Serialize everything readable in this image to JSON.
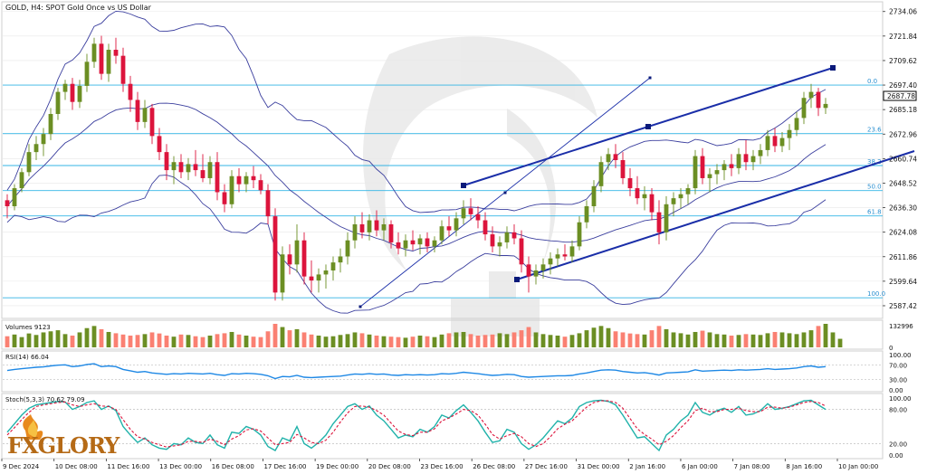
{
  "window": {
    "title": "GOLD, H4:  SPOT Gold Once vs US Dollar"
  },
  "price_axis": {
    "ticks": [
      "2734.06",
      "2721.84",
      "2709.62",
      "2697.40",
      "2685.18",
      "2672.96",
      "2660.74",
      "2648.52",
      "2636.30",
      "2624.08",
      "2611.86",
      "2599.64",
      "2587.42"
    ],
    "current_price": "2687.78",
    "current_price_color": "#000000"
  },
  "time_axis": {
    "labels": [
      "9 Dec 2024",
      "10 Dec 08:00",
      "11 Dec 16:00",
      "13 Dec 00:00",
      "16 Dec 08:00",
      "17 Dec 16:00",
      "19 Dec 00:00",
      "20 Dec 08:00",
      "23 Dec 16:00",
      "26 Dec 08:00",
      "27 Dec 16:00",
      "31 Dec 00:00",
      "2 Jan 16:00",
      "6 Jan 00:00",
      "7 Jan 08:00",
      "8 Jan 16:00",
      "10 Jan 00:00"
    ]
  },
  "fibonacci": {
    "levels": [
      {
        "label": "0.0",
        "price": 2697.4
      },
      {
        "label": "23.6",
        "price": 2673.2
      },
      {
        "label": "38.2",
        "price": 2657.3
      },
      {
        "label": "50.0",
        "price": 2644.8
      },
      {
        "label": "61.8",
        "price": 2632.2
      },
      {
        "label": "100.0",
        "price": 2591.4
      }
    ],
    "color": "#33b5e5"
  },
  "panels": {
    "volume": {
      "title": "Volumes 9123",
      "ticks": [
        "132996",
        "0"
      ],
      "up_color": "#6b8e23",
      "down_color": "#fa8072"
    },
    "rsi": {
      "title": "RSI(14) 66.04",
      "ticks": [
        "100.00",
        "70.00",
        "30.00",
        "0.00"
      ],
      "color": "#1e88e5"
    },
    "stoch": {
      "title": "Stoch(5,3,3) 70.62 79.09",
      "ticks": [
        "100.00",
        "80.00",
        "20.00",
        "0.00"
      ],
      "main_color": "#20b2aa",
      "signal_color": "#dc143c"
    }
  },
  "brand": {
    "name": "FxGlory",
    "logo_text": "FXGLORY"
  },
  "colors": {
    "bull_candle": "#6b8e23",
    "bear_candle": "#dc143c",
    "bollinger": "#3b3f9e",
    "channel": "#1a2ea8",
    "grid": "#e8e8e8"
  },
  "chart_data": {
    "type": "candlestick",
    "title": "GOLD, H4:  SPOT Gold Once vs US Dollar",
    "symbol": "GOLD",
    "timeframe": "H4",
    "ylim": [
      2582,
      2738
    ],
    "candles": [
      {
        "o": 2640.0,
        "h": 2643.0,
        "l": 2631.0,
        "c": 2637.0
      },
      {
        "o": 2637.0,
        "h": 2648.0,
        "l": 2635.0,
        "c": 2646.0
      },
      {
        "o": 2646.0,
        "h": 2656.0,
        "l": 2644.0,
        "c": 2654.0
      },
      {
        "o": 2654.0,
        "h": 2668.0,
        "l": 2652.0,
        "c": 2664.0
      },
      {
        "o": 2664.0,
        "h": 2672.0,
        "l": 2660.0,
        "c": 2668.0
      },
      {
        "o": 2668.0,
        "h": 2676.0,
        "l": 2662.0,
        "c": 2673.0
      },
      {
        "o": 2673.0,
        "h": 2686.0,
        "l": 2670.0,
        "c": 2683.0
      },
      {
        "o": 2683.0,
        "h": 2696.0,
        "l": 2680.0,
        "c": 2694.0
      },
      {
        "o": 2694.0,
        "h": 2700.0,
        "l": 2690.0,
        "c": 2698.0
      },
      {
        "o": 2698.0,
        "h": 2701.0,
        "l": 2685.0,
        "c": 2689.0
      },
      {
        "o": 2689.0,
        "h": 2700.0,
        "l": 2686.0,
        "c": 2697.0
      },
      {
        "o": 2697.0,
        "h": 2713.0,
        "l": 2694.0,
        "c": 2709.0
      },
      {
        "o": 2709.0,
        "h": 2721.0,
        "l": 2706.0,
        "c": 2718.0
      },
      {
        "o": 2718.0,
        "h": 2722.0,
        "l": 2700.0,
        "c": 2703.0
      },
      {
        "o": 2703.0,
        "h": 2718.0,
        "l": 2699.0,
        "c": 2715.0
      },
      {
        "o": 2715.0,
        "h": 2721.0,
        "l": 2708.0,
        "c": 2712.0
      },
      {
        "o": 2712.0,
        "h": 2716.0,
        "l": 2694.0,
        "c": 2698.0
      },
      {
        "o": 2698.0,
        "h": 2702.0,
        "l": 2684.0,
        "c": 2690.0
      },
      {
        "o": 2690.0,
        "h": 2694.0,
        "l": 2675.0,
        "c": 2679.0
      },
      {
        "o": 2679.0,
        "h": 2690.0,
        "l": 2676.0,
        "c": 2686.0
      },
      {
        "o": 2686.0,
        "h": 2688.0,
        "l": 2668.0,
        "c": 2672.0
      },
      {
        "o": 2672.0,
        "h": 2676.0,
        "l": 2660.0,
        "c": 2664.0
      },
      {
        "o": 2664.0,
        "h": 2668.0,
        "l": 2650.0,
        "c": 2655.0
      },
      {
        "o": 2655.0,
        "h": 2662.0,
        "l": 2648.0,
        "c": 2659.0
      },
      {
        "o": 2659.0,
        "h": 2663.0,
        "l": 2651.0,
        "c": 2654.0
      },
      {
        "o": 2654.0,
        "h": 2661.0,
        "l": 2650.0,
        "c": 2658.0
      },
      {
        "o": 2658.0,
        "h": 2665.0,
        "l": 2652.0,
        "c": 2655.0
      },
      {
        "o": 2655.0,
        "h": 2663.0,
        "l": 2649.0,
        "c": 2651.0
      },
      {
        "o": 2651.0,
        "h": 2662.0,
        "l": 2648.0,
        "c": 2659.0
      },
      {
        "o": 2659.0,
        "h": 2664.0,
        "l": 2640.0,
        "c": 2644.0
      },
      {
        "o": 2644.0,
        "h": 2648.0,
        "l": 2634.0,
        "c": 2638.0
      },
      {
        "o": 2638.0,
        "h": 2655.0,
        "l": 2636.0,
        "c": 2652.0
      },
      {
        "o": 2652.0,
        "h": 2656.0,
        "l": 2644.0,
        "c": 2648.0
      },
      {
        "o": 2648.0,
        "h": 2654.0,
        "l": 2644.0,
        "c": 2652.0
      },
      {
        "o": 2652.0,
        "h": 2657.0,
        "l": 2646.0,
        "c": 2650.0
      },
      {
        "o": 2650.0,
        "h": 2653.0,
        "l": 2643.0,
        "c": 2645.0
      },
      {
        "o": 2645.0,
        "h": 2648.0,
        "l": 2628.0,
        "c": 2632.0
      },
      {
        "o": 2632.0,
        "h": 2636.0,
        "l": 2590.0,
        "c": 2594.0
      },
      {
        "o": 2594.0,
        "h": 2617.0,
        "l": 2590.0,
        "c": 2613.0
      },
      {
        "o": 2613.0,
        "h": 2618.0,
        "l": 2603.0,
        "c": 2608.0
      },
      {
        "o": 2608.0,
        "h": 2628.0,
        "l": 2604.0,
        "c": 2620.0
      },
      {
        "o": 2620.0,
        "h": 2624.0,
        "l": 2598.0,
        "c": 2602.0
      },
      {
        "o": 2602.0,
        "h": 2610.0,
        "l": 2594.0,
        "c": 2600.0
      },
      {
        "o": 2600.0,
        "h": 2606.0,
        "l": 2594.0,
        "c": 2603.0
      },
      {
        "o": 2603.0,
        "h": 2608.0,
        "l": 2596.0,
        "c": 2605.0
      },
      {
        "o": 2605.0,
        "h": 2612.0,
        "l": 2600.0,
        "c": 2609.0
      },
      {
        "o": 2609.0,
        "h": 2616.0,
        "l": 2604.0,
        "c": 2612.0
      },
      {
        "o": 2612.0,
        "h": 2624.0,
        "l": 2608.0,
        "c": 2620.0
      },
      {
        "o": 2620.0,
        "h": 2632.0,
        "l": 2616.0,
        "c": 2628.0
      },
      {
        "o": 2628.0,
        "h": 2634.0,
        "l": 2621.0,
        "c": 2624.0
      },
      {
        "o": 2624.0,
        "h": 2633.0,
        "l": 2620.0,
        "c": 2630.0
      },
      {
        "o": 2630.0,
        "h": 2635.0,
        "l": 2622.0,
        "c": 2625.0
      },
      {
        "o": 2625.0,
        "h": 2631.0,
        "l": 2620.0,
        "c": 2628.0
      },
      {
        "o": 2628.0,
        "h": 2630.0,
        "l": 2616.0,
        "c": 2619.0
      },
      {
        "o": 2619.0,
        "h": 2624.0,
        "l": 2613.0,
        "c": 2616.0
      },
      {
        "o": 2616.0,
        "h": 2623.0,
        "l": 2612.0,
        "c": 2620.0
      },
      {
        "o": 2620.0,
        "h": 2625.0,
        "l": 2615.0,
        "c": 2618.0
      },
      {
        "o": 2618.0,
        "h": 2623.0,
        "l": 2613.0,
        "c": 2621.0
      },
      {
        "o": 2621.0,
        "h": 2624.0,
        "l": 2614.0,
        "c": 2617.0
      },
      {
        "o": 2617.0,
        "h": 2622.0,
        "l": 2614.0,
        "c": 2620.0
      },
      {
        "o": 2620.0,
        "h": 2630.0,
        "l": 2618.0,
        "c": 2627.0
      },
      {
        "o": 2627.0,
        "h": 2632.0,
        "l": 2622.0,
        "c": 2625.0
      },
      {
        "o": 2625.0,
        "h": 2634.0,
        "l": 2622.0,
        "c": 2631.0
      },
      {
        "o": 2631.0,
        "h": 2640.0,
        "l": 2628.0,
        "c": 2636.0
      },
      {
        "o": 2636.0,
        "h": 2641.0,
        "l": 2630.0,
        "c": 2633.0
      },
      {
        "o": 2633.0,
        "h": 2637.0,
        "l": 2626.0,
        "c": 2630.0
      },
      {
        "o": 2630.0,
        "h": 2634.0,
        "l": 2620.0,
        "c": 2623.0
      },
      {
        "o": 2623.0,
        "h": 2627.0,
        "l": 2614.0,
        "c": 2617.0
      },
      {
        "o": 2617.0,
        "h": 2622.0,
        "l": 2612.0,
        "c": 2619.0
      },
      {
        "o": 2619.0,
        "h": 2627.0,
        "l": 2616.0,
        "c": 2624.0
      },
      {
        "o": 2624.0,
        "h": 2628.0,
        "l": 2618.0,
        "c": 2621.0
      },
      {
        "o": 2621.0,
        "h": 2625.0,
        "l": 2604.0,
        "c": 2608.0
      },
      {
        "o": 2608.0,
        "h": 2612.0,
        "l": 2594.0,
        "c": 2602.0
      },
      {
        "o": 2602.0,
        "h": 2608.0,
        "l": 2598.0,
        "c": 2605.0
      },
      {
        "o": 2605.0,
        "h": 2611.0,
        "l": 2601.0,
        "c": 2608.0
      },
      {
        "o": 2608.0,
        "h": 2614.0,
        "l": 2603.0,
        "c": 2611.0
      },
      {
        "o": 2611.0,
        "h": 2616.0,
        "l": 2607.0,
        "c": 2613.0
      },
      {
        "o": 2613.0,
        "h": 2618.0,
        "l": 2610.0,
        "c": 2612.0
      },
      {
        "o": 2612.0,
        "h": 2620.0,
        "l": 2609.0,
        "c": 2617.0
      },
      {
        "o": 2617.0,
        "h": 2632.0,
        "l": 2615.0,
        "c": 2629.0
      },
      {
        "o": 2629.0,
        "h": 2640.0,
        "l": 2626.0,
        "c": 2637.0
      },
      {
        "o": 2637.0,
        "h": 2650.0,
        "l": 2634.0,
        "c": 2647.0
      },
      {
        "o": 2647.0,
        "h": 2662.0,
        "l": 2644.0,
        "c": 2659.0
      },
      {
        "o": 2659.0,
        "h": 2666.0,
        "l": 2655.0,
        "c": 2663.0
      },
      {
        "o": 2663.0,
        "h": 2668.0,
        "l": 2656.0,
        "c": 2660.0
      },
      {
        "o": 2660.0,
        "h": 2664.0,
        "l": 2648.0,
        "c": 2651.0
      },
      {
        "o": 2651.0,
        "h": 2656.0,
        "l": 2642.0,
        "c": 2646.0
      },
      {
        "o": 2646.0,
        "h": 2652.0,
        "l": 2638.0,
        "c": 2641.0
      },
      {
        "o": 2641.0,
        "h": 2647.0,
        "l": 2635.0,
        "c": 2643.0
      },
      {
        "o": 2643.0,
        "h": 2646.0,
        "l": 2630.0,
        "c": 2634.0
      },
      {
        "o": 2634.0,
        "h": 2640.0,
        "l": 2618.0,
        "c": 2624.0
      },
      {
        "o": 2624.0,
        "h": 2642.0,
        "l": 2620.0,
        "c": 2638.0
      },
      {
        "o": 2638.0,
        "h": 2644.0,
        "l": 2632.0,
        "c": 2641.0
      },
      {
        "o": 2641.0,
        "h": 2646.0,
        "l": 2636.0,
        "c": 2643.0
      },
      {
        "o": 2643.0,
        "h": 2648.0,
        "l": 2638.0,
        "c": 2646.0
      },
      {
        "o": 2646.0,
        "h": 2665.0,
        "l": 2643.0,
        "c": 2662.0
      },
      {
        "o": 2662.0,
        "h": 2666.0,
        "l": 2648.0,
        "c": 2651.0
      },
      {
        "o": 2651.0,
        "h": 2656.0,
        "l": 2644.0,
        "c": 2653.0
      },
      {
        "o": 2653.0,
        "h": 2658.0,
        "l": 2648.0,
        "c": 2655.0
      },
      {
        "o": 2655.0,
        "h": 2660.0,
        "l": 2650.0,
        "c": 2658.0
      },
      {
        "o": 2658.0,
        "h": 2663.0,
        "l": 2652.0,
        "c": 2656.0
      },
      {
        "o": 2656.0,
        "h": 2666.0,
        "l": 2653.0,
        "c": 2663.0
      },
      {
        "o": 2663.0,
        "h": 2670.0,
        "l": 2655.0,
        "c": 2659.0
      },
      {
        "o": 2659.0,
        "h": 2665.0,
        "l": 2655.0,
        "c": 2662.0
      },
      {
        "o": 2662.0,
        "h": 2668.0,
        "l": 2658.0,
        "c": 2665.0
      },
      {
        "o": 2665.0,
        "h": 2675.0,
        "l": 2662.0,
        "c": 2672.0
      },
      {
        "o": 2672.0,
        "h": 2676.0,
        "l": 2664.0,
        "c": 2667.0
      },
      {
        "o": 2667.0,
        "h": 2674.0,
        "l": 2664.0,
        "c": 2671.0
      },
      {
        "o": 2671.0,
        "h": 2678.0,
        "l": 2665.0,
        "c": 2675.0
      },
      {
        "o": 2675.0,
        "h": 2684.0,
        "l": 2672.0,
        "c": 2681.0
      },
      {
        "o": 2681.0,
        "h": 2694.0,
        "l": 2678.0,
        "c": 2691.0
      },
      {
        "o": 2691.0,
        "h": 2698.0,
        "l": 2686.0,
        "c": 2694.0
      },
      {
        "o": 2694.0,
        "h": 2696.0,
        "l": 2682.0,
        "c": 2686.0
      },
      {
        "o": 2686.0,
        "h": 2691.0,
        "l": 2683.0,
        "c": 2688.0
      }
    ],
    "current_price": 2687.78,
    "volume_max": 132996,
    "volume": [
      52,
      60,
      48,
      65,
      58,
      70,
      75,
      80,
      62,
      55,
      70,
      90,
      100,
      85,
      72,
      66,
      60,
      55,
      58,
      62,
      70,
      65,
      55,
      50,
      60,
      58,
      52,
      48,
      55,
      62,
      66,
      72,
      60,
      55,
      50,
      48,
      75,
      110,
      95,
      80,
      85,
      70,
      60,
      55,
      50,
      52,
      58,
      62,
      70,
      66,
      60,
      55,
      52,
      50,
      48,
      45,
      50,
      55,
      52,
      48,
      60,
      66,
      70,
      72,
      62,
      55,
      58,
      60,
      66,
      62,
      70,
      80,
      95,
      70,
      62,
      58,
      55,
      50,
      58,
      66,
      80,
      92,
      100,
      90,
      75,
      70,
      65,
      62,
      60,
      80,
      100,
      85,
      70,
      66,
      60,
      72,
      78,
      70,
      62,
      60,
      55,
      58,
      62,
      60,
      58,
      66,
      72,
      70,
      66,
      62,
      70,
      80,
      100,
      110,
      70,
      40
    ],
    "rsi": [
      55,
      58,
      60,
      62,
      64,
      65,
      68,
      70,
      71,
      66,
      68,
      72,
      74,
      66,
      68,
      66,
      58,
      54,
      50,
      52,
      48,
      46,
      44,
      46,
      45,
      47,
      46,
      45,
      47,
      43,
      41,
      46,
      45,
      47,
      46,
      44,
      40,
      32,
      38,
      37,
      41,
      36,
      35,
      36,
      37,
      38,
      39,
      42,
      45,
      44,
      46,
      44,
      45,
      42,
      41,
      43,
      42,
      43,
      42,
      43,
      46,
      45,
      47,
      50,
      48,
      46,
      43,
      41,
      42,
      44,
      43,
      38,
      36,
      37,
      38,
      39,
      40,
      40,
      41,
      45,
      48,
      52,
      56,
      57,
      56,
      52,
      50,
      48,
      49,
      46,
      42,
      48,
      49,
      50,
      51,
      57,
      53,
      54,
      55,
      56,
      55,
      57,
      56,
      57,
      58,
      60,
      58,
      59,
      60,
      62,
      66,
      68,
      64,
      66
    ],
    "stoch_k": [
      40,
      55,
      70,
      82,
      88,
      90,
      92,
      94,
      93,
      80,
      85,
      92,
      95,
      80,
      86,
      78,
      50,
      35,
      22,
      30,
      18,
      12,
      10,
      20,
      18,
      30,
      22,
      20,
      35,
      18,
      12,
      40,
      38,
      50,
      45,
      35,
      15,
      8,
      30,
      25,
      50,
      20,
      12,
      22,
      35,
      55,
      70,
      85,
      90,
      80,
      86,
      70,
      60,
      45,
      30,
      35,
      32,
      45,
      40,
      50,
      70,
      65,
      78,
      88,
      75,
      60,
      40,
      22,
      25,
      45,
      40,
      20,
      10,
      18,
      30,
      45,
      60,
      55,
      65,
      85,
      92,
      95,
      96,
      94,
      88,
      70,
      50,
      30,
      32,
      20,
      8,
      35,
      45,
      60,
      70,
      92,
      75,
      70,
      78,
      82,
      75,
      85,
      70,
      72,
      78,
      90,
      80,
      82,
      85,
      90,
      95,
      96,
      88,
      80
    ],
    "stoch_d": [
      35,
      48,
      62,
      75,
      85,
      88,
      90,
      92,
      93,
      88,
      85,
      88,
      90,
      86,
      85,
      80,
      62,
      45,
      32,
      28,
      22,
      18,
      14,
      16,
      18,
      24,
      24,
      22,
      28,
      24,
      18,
      28,
      34,
      44,
      46,
      42,
      30,
      18,
      20,
      22,
      36,
      30,
      22,
      20,
      26,
      40,
      58,
      74,
      85,
      86,
      84,
      78,
      70,
      56,
      42,
      36,
      34,
      40,
      40,
      46,
      60,
      65,
      72,
      80,
      78,
      70,
      54,
      36,
      28,
      34,
      38,
      32,
      20,
      15,
      20,
      32,
      46,
      54,
      60,
      72,
      84,
      92,
      95,
      95,
      92,
      82,
      64,
      46,
      36,
      28,
      18,
      24,
      34,
      48,
      60,
      78,
      82,
      76,
      76,
      80,
      80,
      82,
      78,
      76,
      76,
      84,
      84,
      82,
      84,
      88,
      92,
      94,
      92,
      86
    ]
  }
}
